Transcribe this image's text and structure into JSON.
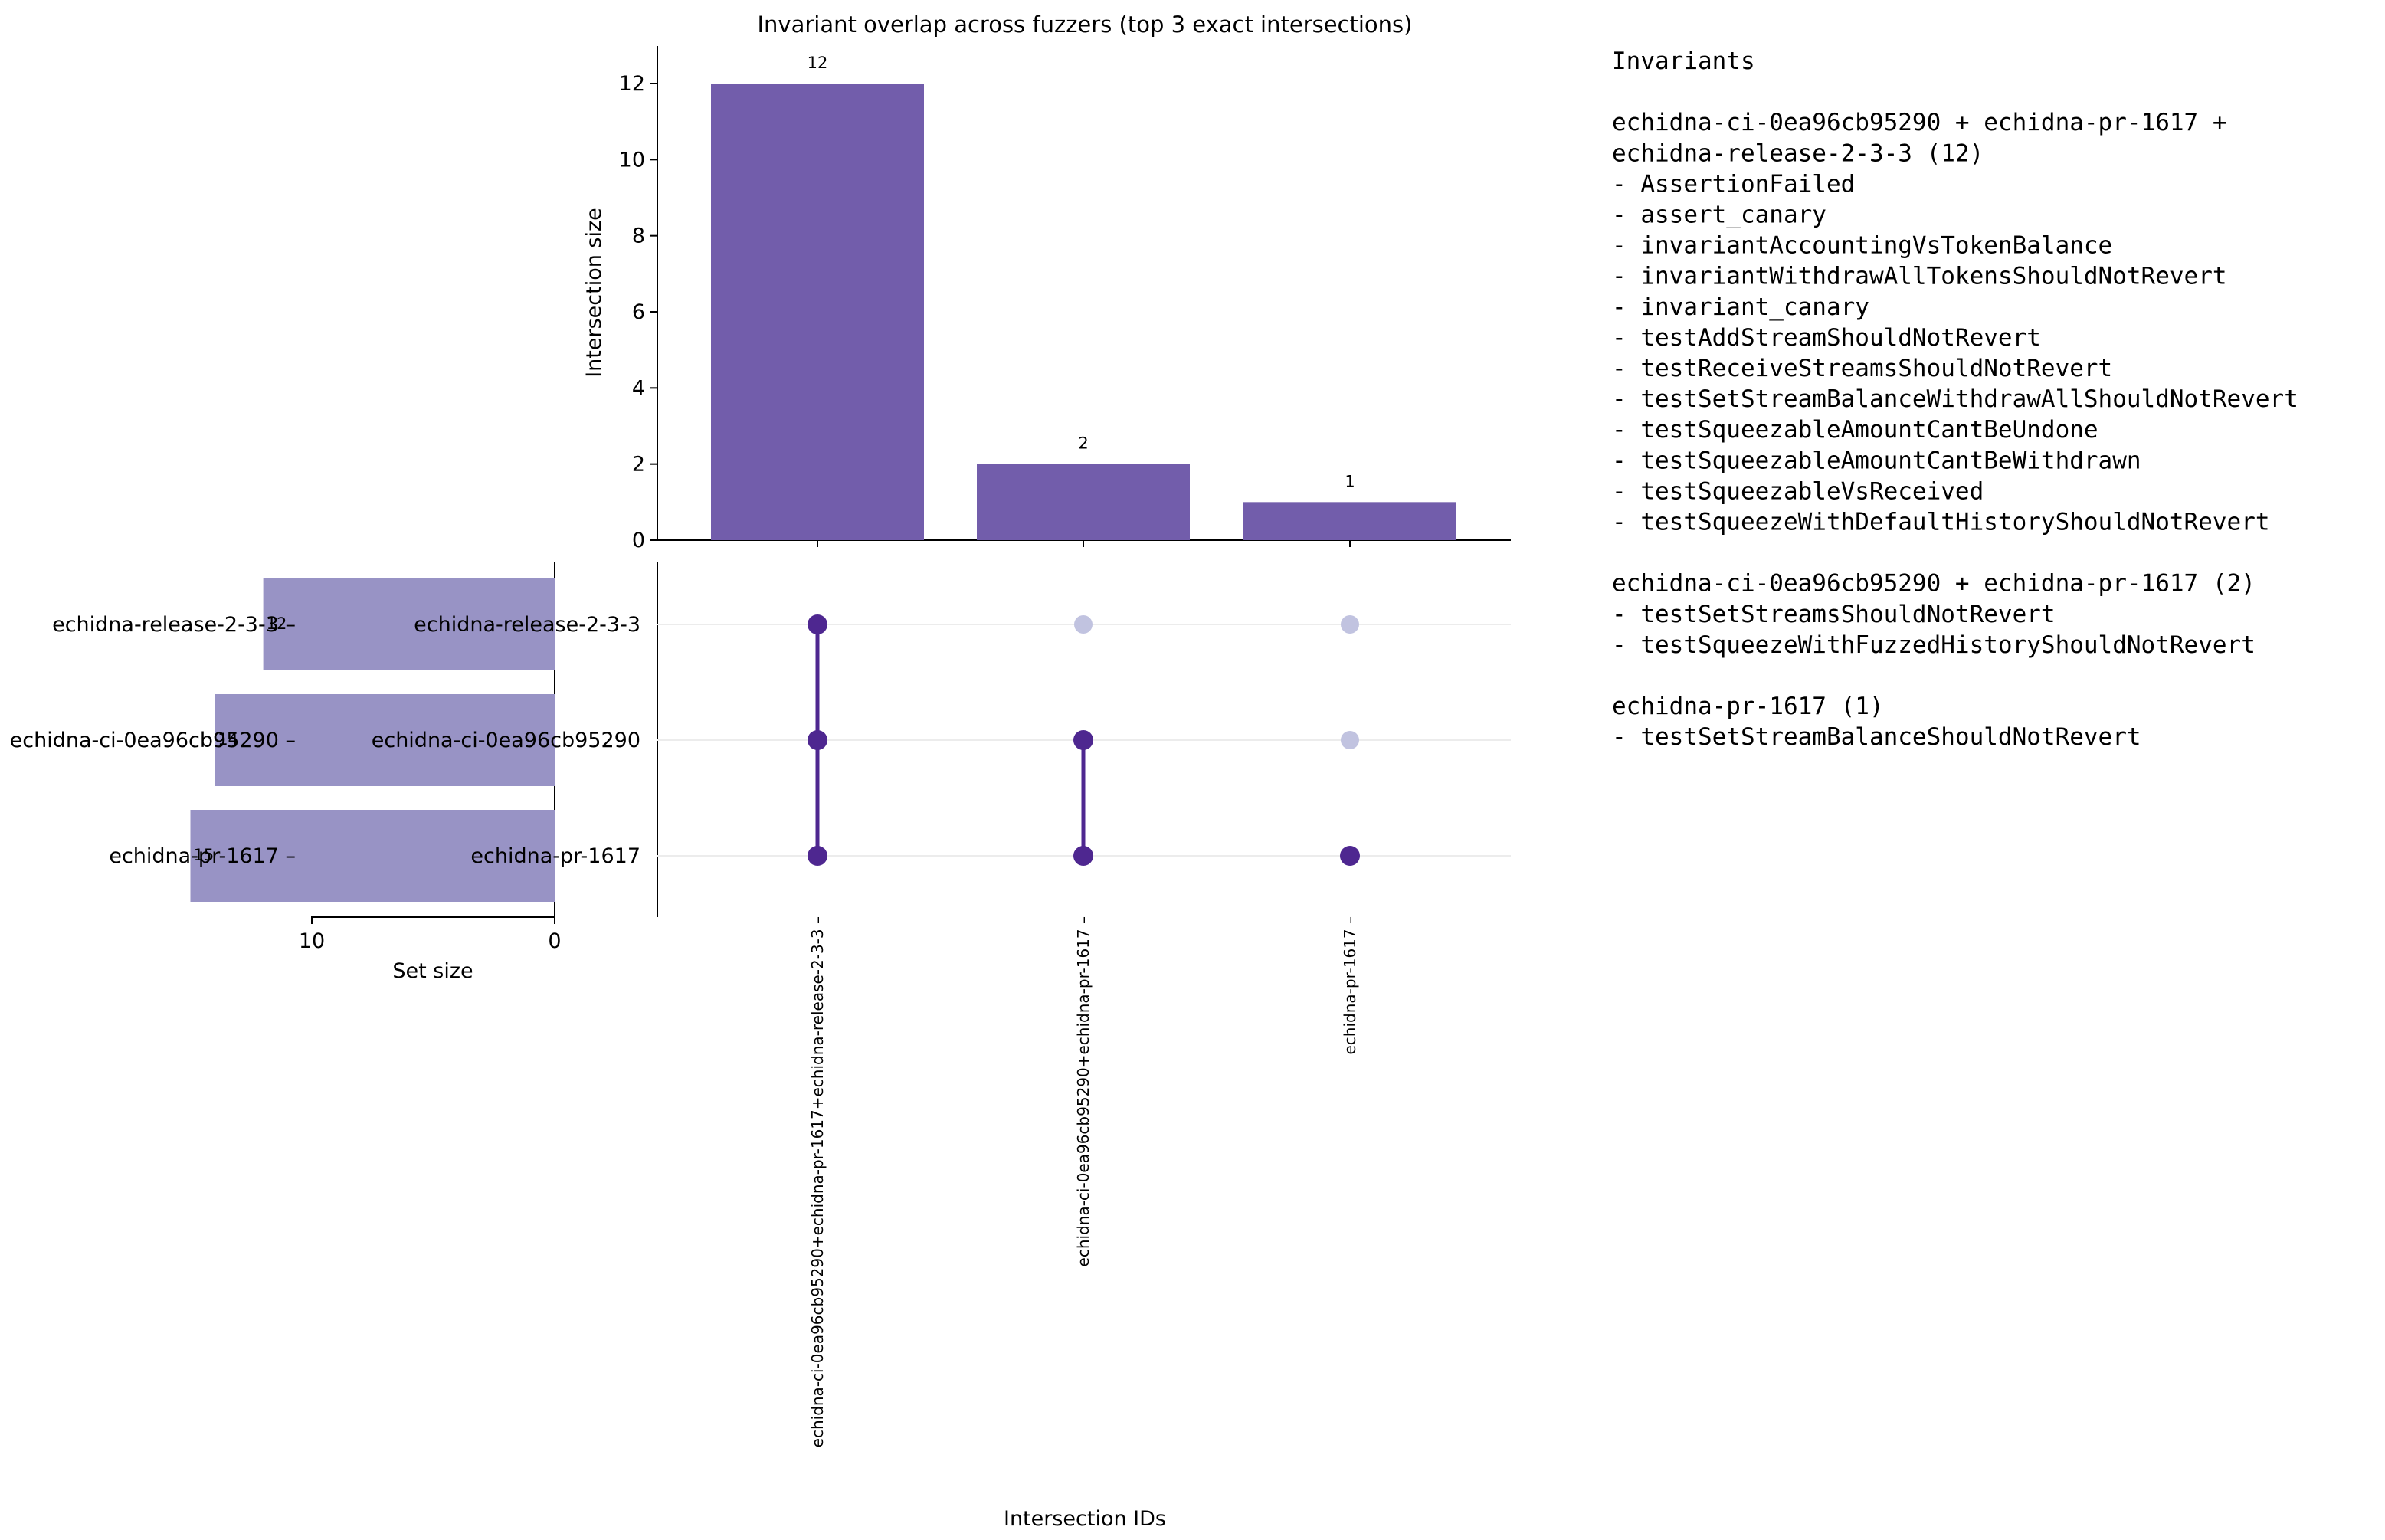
{
  "chart_data": {
    "type": "upset",
    "title": "Invariant overlap across fuzzers (top 3 exact intersections)",
    "intersections": {
      "type": "bar",
      "ylabel": "Intersection size",
      "xlabel": "Intersection IDs",
      "ylim": [
        0,
        13
      ],
      "yticks": [
        "0",
        "2",
        "4",
        "6",
        "8",
        "10",
        "12"
      ],
      "categories": [
        "echidna-ci-0ea96cb95290+echidna-pr-1617+echidna-release-2-3-3",
        "echidna-ci-0ea96cb95290+echidna-pr-1617",
        "echidna-pr-1617"
      ],
      "values": [
        12,
        2,
        1
      ],
      "value_labels": [
        "12",
        "2",
        "1"
      ],
      "color": "#725DAB"
    },
    "sets": {
      "type": "bar",
      "orientation": "horizontal",
      "xlabel": "Set size",
      "xticks": [
        "10",
        "0"
      ],
      "names": [
        "echidna-release-2-3-3",
        "echidna-ci-0ea96cb95290",
        "echidna-pr-1617"
      ],
      "values": [
        12,
        14,
        15
      ],
      "value_labels": [
        "12",
        "14",
        "15"
      ],
      "color": "#9893C5"
    },
    "matrix": {
      "membership": [
        [
          true,
          true,
          true
        ],
        [
          false,
          true,
          true
        ],
        [
          false,
          false,
          true
        ]
      ],
      "active_color": "#4E2790",
      "inactive_color": "#C1C3E0"
    }
  },
  "legend": {
    "title": "Invariants",
    "groups": [
      {
        "header": [
          "echidna-ci-0ea96cb95290 + echidna-pr-1617 +",
          "echidna-release-2-3-3 (12)"
        ],
        "items": [
          "  - AssertionFailed",
          "  - assert_canary",
          "  - invariantAccountingVsTokenBalance",
          "  - invariantWithdrawAllTokensShouldNotRevert",
          "  - invariant_canary",
          "  - testAddStreamShouldNotRevert",
          "  - testReceiveStreamsShouldNotRevert",
          "  - testSetStreamBalanceWithdrawAllShouldNotRevert",
          "  - testSqueezableAmountCantBeUndone",
          "  - testSqueezableAmountCantBeWithdrawn",
          "  - testSqueezableVsReceived",
          "  - testSqueezeWithDefaultHistoryShouldNotRevert"
        ]
      },
      {
        "header": [
          "echidna-ci-0ea96cb95290 + echidna-pr-1617 (2)"
        ],
        "items": [
          "  - testSetStreamsShouldNotRevert",
          "  - testSqueezeWithFuzzedHistoryShouldNotRevert"
        ]
      },
      {
        "header": [
          "echidna-pr-1617 (1)"
        ],
        "items": [
          "  - testSetStreamBalanceShouldNotRevert"
        ]
      }
    ]
  }
}
